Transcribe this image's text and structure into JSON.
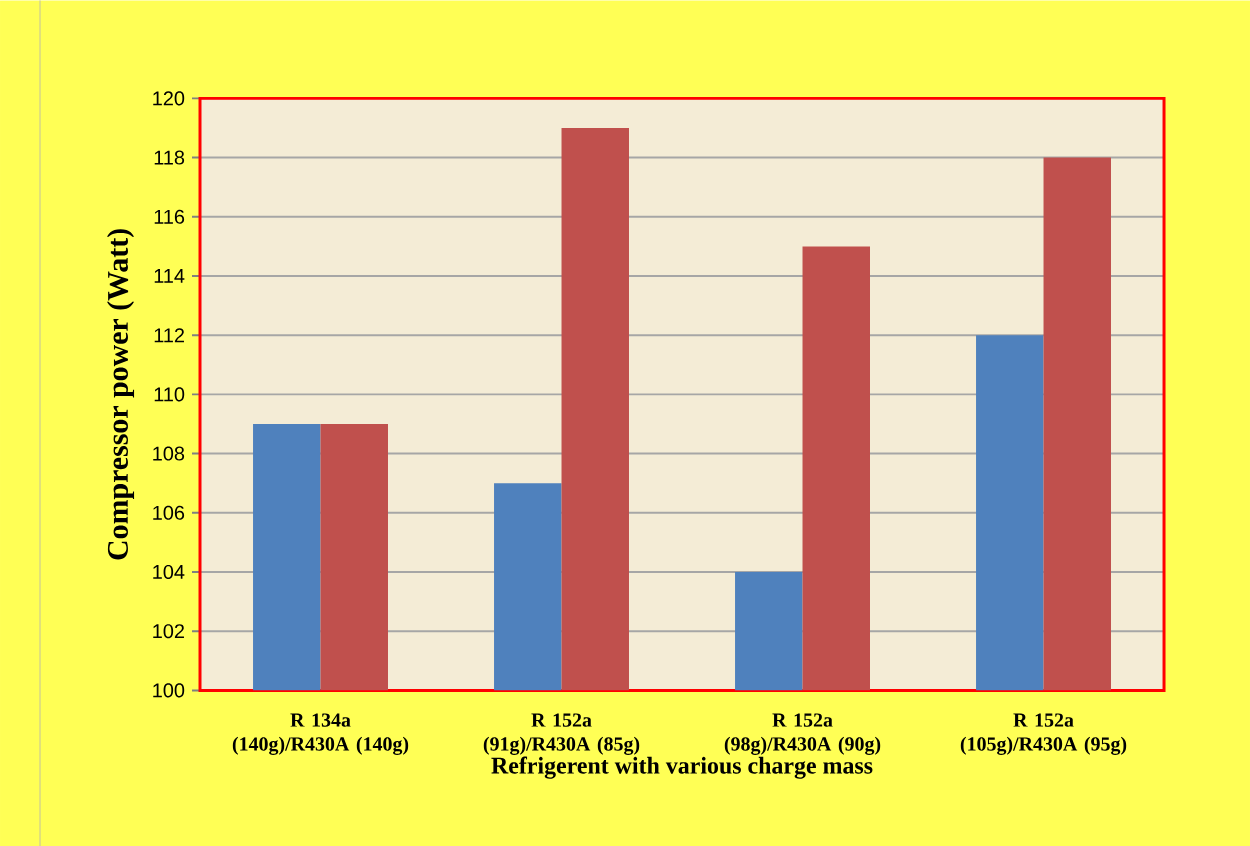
{
  "chart_data": {
    "type": "bar",
    "xlabel": "Refrigerent with various charge mass",
    "ylabel": "Compressor power (Watt)",
    "categories": [
      "R 134a (140g)/R430A (140g)",
      "R 152a (91g)/R430A (85g)",
      "R 152a (98g)/R430A (90g)",
      "R 152a (105g)/R430A (95g)"
    ],
    "series": [
      {
        "color": "#4f81bd",
        "values": [
          109,
          107,
          104,
          112
        ]
      },
      {
        "color": "#c0504d",
        "values": [
          109,
          119,
          115,
          118
        ]
      }
    ],
    "ylim": [
      100,
      120
    ],
    "yticks": [
      100,
      102,
      104,
      106,
      108,
      110,
      112,
      114,
      116,
      118,
      120
    ],
    "grid": "y"
  }
}
